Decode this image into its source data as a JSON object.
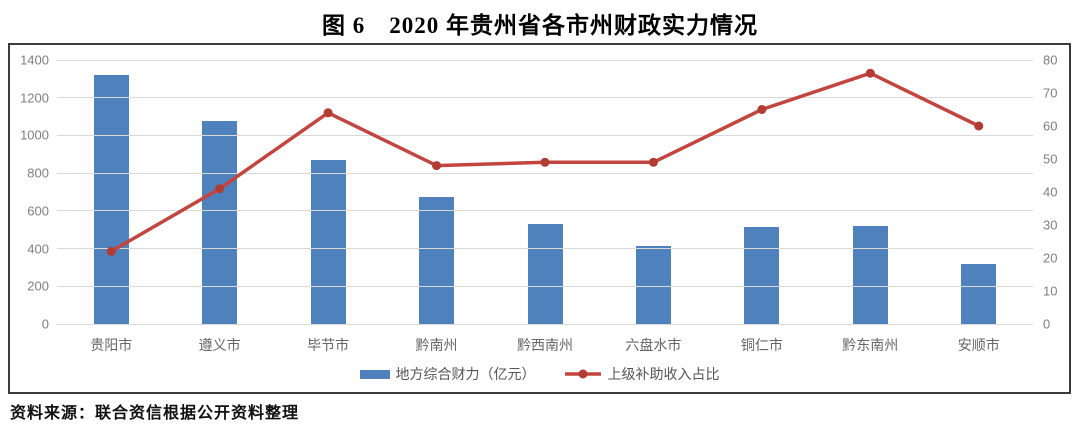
{
  "page": {
    "title": "图 6　2020 年贵州省各市州财政实力情况",
    "source_note": "资料来源：联合资信根据公开资料整理"
  },
  "colors": {
    "bar": "#4f81bd",
    "line": "#c2463f",
    "marker": "#b23b34",
    "grid": "#d9d9d9",
    "axis_text": "#7f7f7f",
    "border": "#3b3b3b"
  },
  "chart_data": {
    "type": "bar",
    "title": "图 6　2020 年贵州省各市州财政实力情况",
    "categories": [
      "贵阳市",
      "遵义市",
      "毕节市",
      "黔南州",
      "黔西南州",
      "六盘水市",
      "铜仁市",
      "黔东南州",
      "安顺市"
    ],
    "series": [
      {
        "name": "地方综合财力（亿元）",
        "type": "bar",
        "axis": "left",
        "values": [
          1320,
          1078,
          868,
          675,
          528,
          412,
          517,
          518,
          320
        ]
      },
      {
        "name": "上级补助收入占比",
        "type": "line",
        "axis": "right",
        "values": [
          22,
          41,
          64,
          48,
          49,
          49,
          65,
          76,
          60
        ]
      }
    ],
    "left_axis": {
      "min": 0,
      "max": 1400,
      "step": 200,
      "ticks": [
        "0",
        "200",
        "400",
        "600",
        "800",
        "1000",
        "1200",
        "1400"
      ]
    },
    "right_axis": {
      "min": 0,
      "max": 80,
      "step": 10,
      "ticks": [
        "0",
        "10",
        "20",
        "30",
        "40",
        "50",
        "60",
        "70",
        "80"
      ]
    },
    "grid": true,
    "legend_position": "bottom",
    "xlabel": "",
    "ylabel": ""
  }
}
